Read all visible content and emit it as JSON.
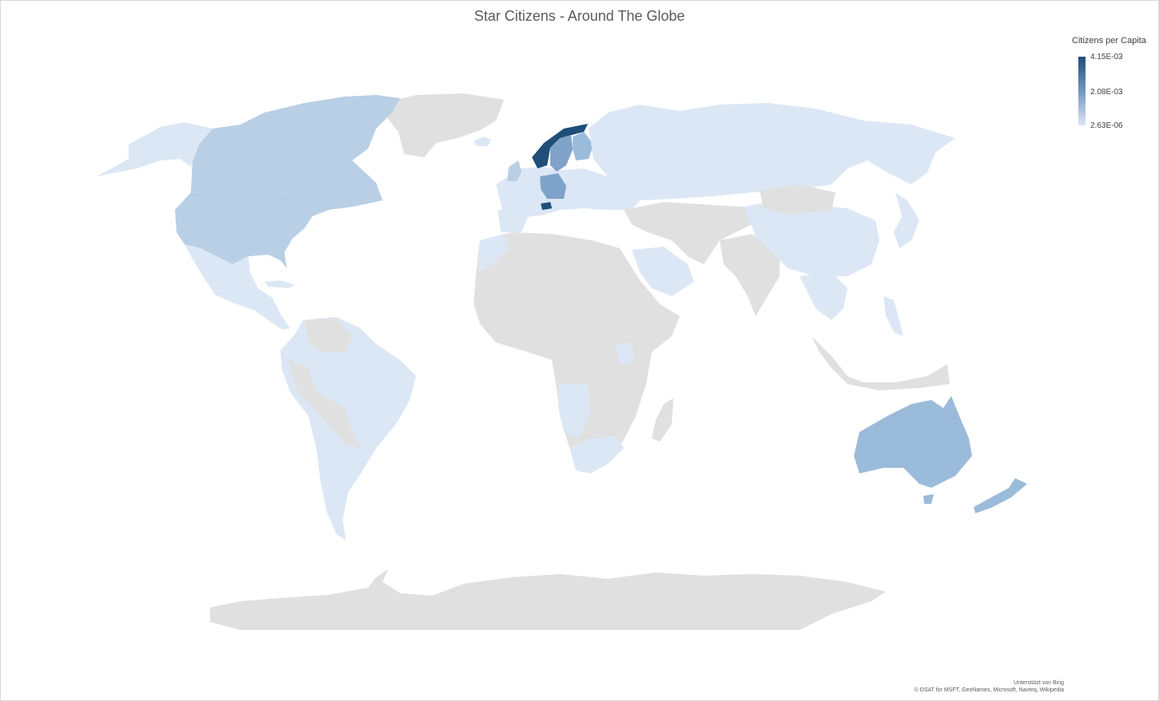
{
  "title": "Star Citizens - Around The Globe",
  "legend": {
    "title": "Citizens per Capita",
    "max_label": "4.15E-03",
    "mid_label": "2.08E-03",
    "min_label": "2.63E-06",
    "color_max": "#1f4e79",
    "color_mid": "#6d94bf",
    "color_min": "#dce7f5"
  },
  "attribution": {
    "line1": "Unterstützt von Bing",
    "line2": "© DSAT for MSFT, GeoNames, Microsoft, Navteq, Wikipedia"
  },
  "colors": {
    "no_data": "#e0e0e0",
    "very_light": "#dce7f5",
    "light": "#b9cfe6",
    "medium": "#9bbbda",
    "medium_dark": "#7fa2c8",
    "dark": "#1f4e79"
  }
}
